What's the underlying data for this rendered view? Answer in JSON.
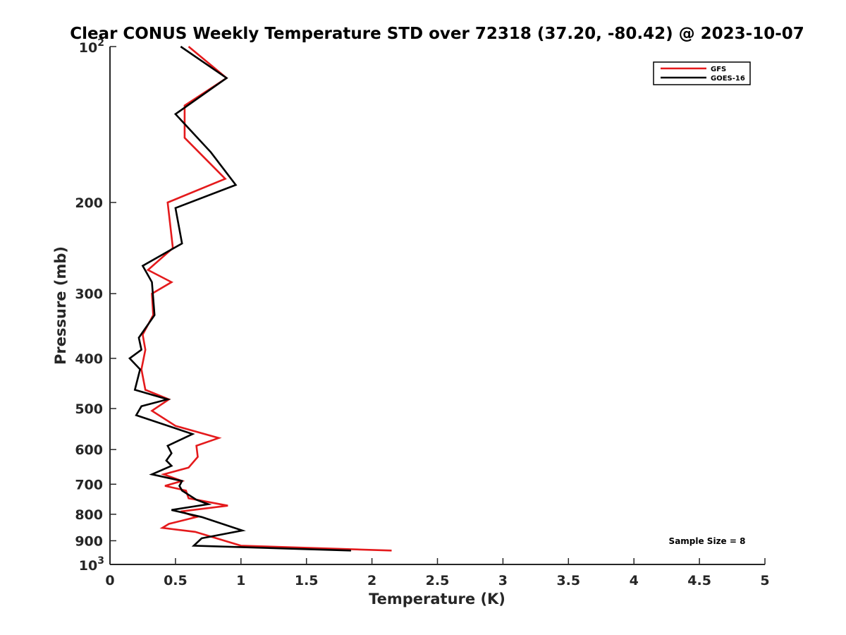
{
  "chart_data": {
    "type": "line",
    "title": "Clear CONUS Weekly Temperature STD over 72318 (37.20, -80.42) @ 2023-10-07",
    "xlabel": "Temperature (K)",
    "ylabel": "Pressure (mb)",
    "xlim": [
      0,
      5
    ],
    "ylim": [
      100,
      1000
    ],
    "yscale": "log",
    "y_reversed": true,
    "grid": false,
    "legend_position": "top-right",
    "x_ticks": [
      "0",
      "0.5",
      "1",
      "1.5",
      "2",
      "2.5",
      "3",
      "3.5",
      "4",
      "4.5",
      "5"
    ],
    "y_ticks": [
      {
        "value": 100,
        "base": "10",
        "exp": "2"
      },
      {
        "value": 200,
        "label": "200"
      },
      {
        "value": 300,
        "label": "300"
      },
      {
        "value": 400,
        "label": "400"
      },
      {
        "value": 500,
        "label": "500"
      },
      {
        "value": 600,
        "label": "600"
      },
      {
        "value": 700,
        "label": "700"
      },
      {
        "value": 800,
        "label": "800"
      },
      {
        "value": 900,
        "label": "900"
      },
      {
        "value": 1000,
        "base": "10",
        "exp": "3"
      }
    ],
    "annotation": "Sample Size = 8",
    "series": [
      {
        "name": "GFS",
        "color": "#e41a1c",
        "points": [
          [
            0.6,
            100
          ],
          [
            0.89,
            115
          ],
          [
            0.57,
            130
          ],
          [
            0.57,
            150
          ],
          [
            0.88,
            180
          ],
          [
            0.44,
            200
          ],
          [
            0.48,
            245
          ],
          [
            0.29,
            270
          ],
          [
            0.47,
            285
          ],
          [
            0.32,
            300
          ],
          [
            0.33,
            330
          ],
          [
            0.25,
            360
          ],
          [
            0.27,
            385
          ],
          [
            0.24,
            420
          ],
          [
            0.27,
            460
          ],
          [
            0.45,
            480
          ],
          [
            0.32,
            505
          ],
          [
            0.5,
            540
          ],
          [
            0.83,
            570
          ],
          [
            0.66,
            590
          ],
          [
            0.67,
            620
          ],
          [
            0.6,
            650
          ],
          [
            0.41,
            670
          ],
          [
            0.55,
            690
          ],
          [
            0.42,
            705
          ],
          [
            0.58,
            720
          ],
          [
            0.6,
            745
          ],
          [
            0.9,
            770
          ],
          [
            0.54,
            790
          ],
          [
            0.66,
            810
          ],
          [
            0.45,
            835
          ],
          [
            0.4,
            850
          ],
          [
            0.65,
            865
          ],
          [
            1.0,
            920
          ],
          [
            2.15,
            940
          ]
        ]
      },
      {
        "name": "GOES-16",
        "color": "#000000",
        "points": [
          [
            0.54,
            100
          ],
          [
            0.89,
            115
          ],
          [
            0.5,
            135
          ],
          [
            0.77,
            160
          ],
          [
            0.96,
            185
          ],
          [
            0.5,
            205
          ],
          [
            0.55,
            240
          ],
          [
            0.25,
            265
          ],
          [
            0.32,
            285
          ],
          [
            0.34,
            330
          ],
          [
            0.22,
            365
          ],
          [
            0.24,
            385
          ],
          [
            0.15,
            400
          ],
          [
            0.23,
            420
          ],
          [
            0.19,
            460
          ],
          [
            0.44,
            480
          ],
          [
            0.24,
            495
          ],
          [
            0.2,
            515
          ],
          [
            0.63,
            560
          ],
          [
            0.44,
            590
          ],
          [
            0.47,
            610
          ],
          [
            0.43,
            630
          ],
          [
            0.47,
            645
          ],
          [
            0.32,
            670
          ],
          [
            0.55,
            690
          ],
          [
            0.53,
            705
          ],
          [
            0.55,
            720
          ],
          [
            0.66,
            750
          ],
          [
            0.75,
            765
          ],
          [
            0.47,
            785
          ],
          [
            0.7,
            810
          ],
          [
            1.01,
            860
          ],
          [
            0.7,
            890
          ],
          [
            0.64,
            920
          ],
          [
            1.84,
            940
          ]
        ]
      }
    ]
  }
}
